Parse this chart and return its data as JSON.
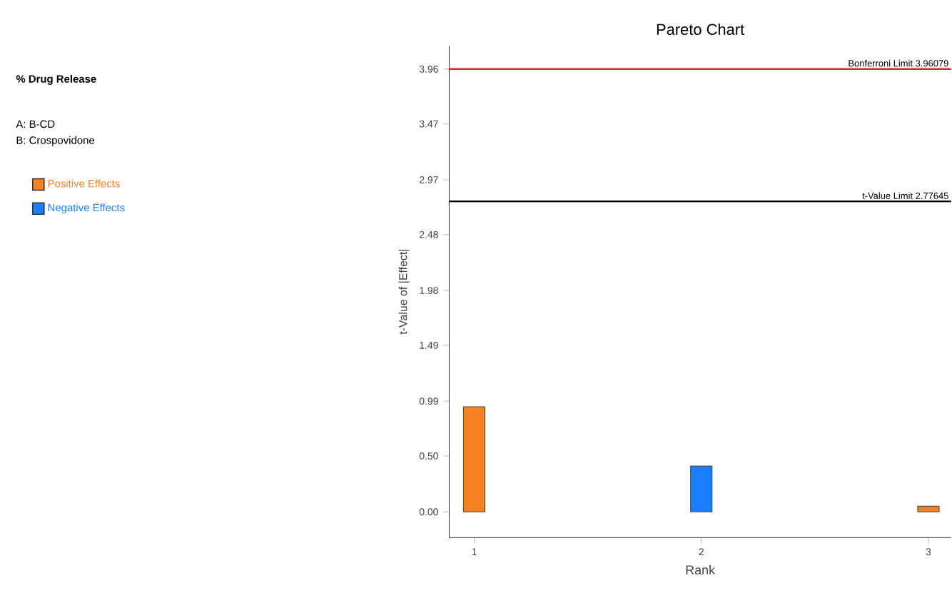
{
  "chart_data": {
    "type": "bar",
    "title": "Pareto Chart",
    "xlabel": "Rank",
    "ylabel": "t-Value of |Effect|",
    "annotations": [
      "% Drug Release",
      "A: B-CD",
      "B: Crospovidone"
    ],
    "series": [
      {
        "name": "Positive Effects",
        "color": "#f58220",
        "x": [
          1,
          3
        ],
        "values": [
          0.94,
          0.05
        ]
      },
      {
        "name": "Negative Effects",
        "color": "#1a7fff",
        "x": [
          2
        ],
        "values": [
          0.41
        ]
      }
    ],
    "xlim": [
      0.89,
      3.1
    ],
    "xticks": [
      1,
      2,
      3
    ],
    "ylim": [
      -0.23,
      4.17
    ],
    "yticks": [
      {
        "value": 0,
        "label": "0.00"
      },
      {
        "value": 0.5,
        "label": "0.50"
      },
      0.99,
      1.49,
      1.98,
      2.48,
      2.97,
      3.47,
      3.96
    ],
    "ref_lines": [
      {
        "axis": "y",
        "value": 3.96079,
        "label": "Bonferroni Limit 3.96079",
        "color": "#ee1c24"
      },
      {
        "axis": "y",
        "value": 2.77645,
        "label": "t-Value Limit 2.77645",
        "color": "#000000"
      }
    ],
    "legend": "left",
    "grid": false
  }
}
